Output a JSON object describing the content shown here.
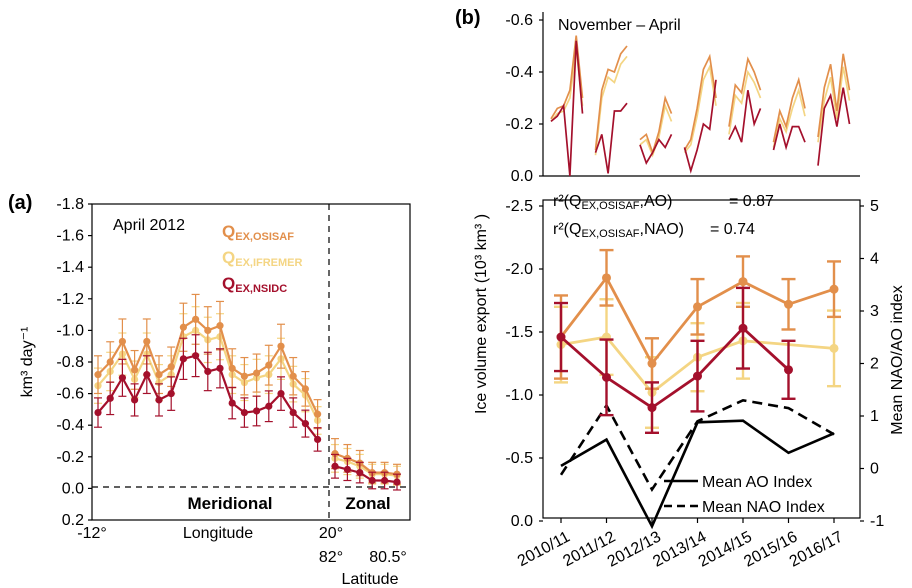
{
  "colors": {
    "osisaf": "#e28f4b",
    "ifremer": "#f4d583",
    "nsidc": "#a4102c",
    "ink": "#000000"
  },
  "panel_a": {
    "letter": "(a)",
    "inset_label": "April 2012",
    "ylabel": "km³ day⁻¹",
    "xlabel_longitude": "Longitude",
    "xlabel_latitude": "Latitude",
    "region_meridional": "Meridional",
    "region_zonal": "Zonal",
    "legend": [
      {
        "main": "Q",
        "sub": "EX,OSISAF",
        "color_key": "osisaf"
      },
      {
        "main": "Q",
        "sub": "EX,IFREMER",
        "color_key": "ifremer"
      },
      {
        "main": "Q",
        "sub": "EX,NSIDC",
        "color_key": "nsidc"
      }
    ],
    "y_ticks": [
      "-1.8",
      "-1.6",
      "-1.4",
      "-1.2",
      "-1.0",
      "-0.8",
      "-0.6",
      "-0.4",
      "-0.2",
      "0.0",
      "0.2"
    ],
    "x_ticks": {
      "left": "-12°",
      "mid": "20°",
      "lat_left": "82°",
      "lat_right": "80.5°"
    }
  },
  "panel_b": {
    "letter": "(b)",
    "inset_label": "November – April",
    "ylabel": "Ice volume export (10³ km³ )",
    "ylabel_right": "Mean NAO/AO index",
    "r2_ao_label": "r²(Q",
    "r2_ao_sub": "EX,OSISAF",
    "r2_ao_tail": ",AO)",
    "r2_ao_value": "= 0.87",
    "r2_nao_label": "r²(Q",
    "r2_nao_sub": "EX,OSISAF",
    "r2_nao_tail": ",NAO)",
    "r2_nao_value": "= 0.74",
    "legend_ao": "Mean AO Index",
    "legend_nao": "Mean NAO Index",
    "top_y_ticks": [
      "-0.6",
      "-0.4",
      "-0.2",
      "0.0"
    ],
    "left_y_ticks": [
      "-2.5",
      "-2.0",
      "-1.5",
      "-1.0",
      "-0.5",
      "0.0"
    ],
    "right_y_ticks": [
      "5",
      "4",
      "3",
      "2",
      "1",
      "0",
      "-1"
    ],
    "seasons": [
      "2010/11",
      "2011/12",
      "2012/13",
      "2013/14",
      "2014/15",
      "2015/16",
      "2016/17"
    ]
  },
  "chart_data": [
    {
      "type": "line",
      "panel": "a",
      "title": "April 2012",
      "ylabel": "km³ day⁻¹",
      "ylim": [
        0.2,
        -1.8
      ],
      "series": [
        {
          "name": "Q EX,OSISAF",
          "meridional": [
            -0.72,
            -0.8,
            -0.93,
            -0.75,
            -0.93,
            -0.72,
            -0.77,
            -1.02,
            -1.07,
            -1.0,
            -1.03,
            -0.76,
            -0.71,
            -0.73,
            -0.78,
            -0.9,
            -0.71,
            -0.63,
            -0.47
          ],
          "zonal": [
            -0.22,
            -0.19,
            -0.16,
            -0.1,
            -0.1,
            -0.09
          ]
        },
        {
          "name": "Q EX,IFREMER",
          "meridional": [
            -0.65,
            -0.74,
            -0.85,
            -0.69,
            -0.85,
            -0.67,
            -0.72,
            -0.96,
            -1.0,
            -0.94,
            -0.96,
            -0.72,
            -0.67,
            -0.7,
            -0.72,
            -0.82,
            -0.66,
            -0.59,
            -0.43
          ],
          "zonal": [
            -0.19,
            -0.17,
            -0.14,
            -0.09,
            -0.09,
            -0.08
          ]
        },
        {
          "name": "Q EX,NSIDC",
          "meridional": [
            -0.48,
            -0.57,
            -0.7,
            -0.56,
            -0.72,
            -0.56,
            -0.6,
            -0.82,
            -0.84,
            -0.74,
            -0.76,
            -0.54,
            -0.48,
            -0.49,
            -0.52,
            -0.6,
            -0.48,
            -0.41,
            -0.31
          ],
          "zonal": [
            -0.14,
            -0.12,
            -0.1,
            -0.05,
            -0.05,
            -0.04
          ]
        }
      ]
    },
    {
      "type": "line",
      "panel": "b-top",
      "title": "November – April",
      "ylim": [
        0.0,
        -0.6
      ],
      "series": [
        {
          "name": "Q EX,OSISAF",
          "values": [
            [
              -0.22,
              -0.26,
              -0.27,
              -0.33,
              -0.54,
              -0.3
            ],
            [
              -0.1,
              -0.33,
              -0.41,
              -0.4,
              -0.47,
              -0.5
            ],
            [
              -0.14,
              -0.16,
              -0.09,
              -0.17,
              -0.3,
              -0.24
            ],
            [
              -0.1,
              -0.14,
              -0.26,
              -0.41,
              -0.46,
              -0.3
            ],
            [
              -0.19,
              -0.35,
              -0.32,
              -0.45,
              -0.4,
              -0.33
            ],
            [
              -0.13,
              -0.25,
              -0.19,
              -0.3,
              -0.37,
              -0.26
            ],
            [
              -0.15,
              -0.34,
              -0.43,
              -0.25,
              -0.47,
              -0.33
            ]
          ]
        },
        {
          "name": "Q EX,IFREMER",
          "values": [
            [
              -0.21,
              -0.24,
              -0.25,
              -0.3,
              -0.49,
              -0.27
            ],
            [
              -0.08,
              -0.3,
              -0.38,
              -0.36,
              -0.43,
              -0.46
            ],
            [
              -0.12,
              -0.14,
              -0.08,
              -0.15,
              -0.27,
              -0.21
            ],
            [
              -0.09,
              -0.12,
              -0.23,
              -0.37,
              -0.42,
              -0.27
            ],
            [
              -0.16,
              -0.31,
              -0.28,
              -0.4,
              -0.36,
              -0.3
            ],
            [
              -0.11,
              -0.22,
              -0.17,
              -0.26,
              -0.33,
              -0.23
            ],
            [
              -0.13,
              -0.29,
              -0.38,
              -0.22,
              -0.42,
              -0.29
            ]
          ]
        },
        {
          "name": "Q EX,NSIDC",
          "values": [
            [
              -0.21,
              -0.23,
              -0.27,
              0.0,
              -0.52,
              -0.24
            ],
            [
              -0.09,
              -0.16,
              -0.01,
              -0.25,
              -0.25,
              -0.28
            ],
            [
              -0.12,
              -0.05,
              -0.09,
              -0.14,
              -0.11,
              -0.16
            ],
            [
              -0.11,
              -0.02,
              -0.1,
              -0.2,
              -0.18,
              -0.37
            ],
            [
              -0.14,
              -0.19,
              -0.13,
              -0.33,
              -0.2,
              -0.26
            ],
            [
              -0.1,
              -0.2,
              -0.11,
              -0.19,
              -0.19,
              -0.13
            ],
            [
              -0.04,
              -0.26,
              -0.31,
              -0.19,
              -0.34,
              -0.2
            ]
          ]
        }
      ]
    },
    {
      "type": "line",
      "panel": "b-bottom",
      "ylabel": "Ice volume export (10³ km³ )",
      "ylabel_right": "Mean NAO/AO index",
      "ylim": [
        0.0,
        -2.5
      ],
      "ylim_right": [
        -1,
        5
      ],
      "categories": [
        "2010/11",
        "2011/12",
        "2012/13",
        "2013/14",
        "2014/15",
        "2015/16",
        "2016/17"
      ],
      "series": [
        {
          "name": "Q EX,OSISAF",
          "values": [
            -1.46,
            -1.93,
            -1.25,
            -1.7,
            -1.9,
            -1.72,
            -1.84
          ],
          "err": [
            0.33,
            0.22,
            0.2,
            0.22,
            0.2,
            0.2,
            0.22
          ]
        },
        {
          "name": "Q EX,IFREMER",
          "values": [
            -1.4,
            -1.46,
            -1.02,
            -1.3,
            -1.43,
            null,
            -1.37
          ],
          "err": [
            0.3,
            0.3,
            0.28,
            0.27,
            0.3,
            0,
            0.3
          ]
        },
        {
          "name": "Q EX,NSIDC",
          "values": [
            -1.46,
            -1.14,
            -0.9,
            -1.15,
            -1.53,
            -1.2,
            null
          ],
          "err": [
            0.27,
            0.3,
            0.2,
            0.28,
            0.32,
            0.23,
            0
          ]
        },
        {
          "name": "Mean AO Index",
          "axis": "right",
          "values": [
            0.05,
            0.55,
            -1.1,
            0.88,
            0.91,
            0.3,
            0.67
          ]
        },
        {
          "name": "Mean NAO Index",
          "axis": "right",
          "values": [
            -0.12,
            1.2,
            -0.4,
            0.9,
            1.3,
            1.15,
            0.65
          ]
        }
      ]
    }
  ]
}
